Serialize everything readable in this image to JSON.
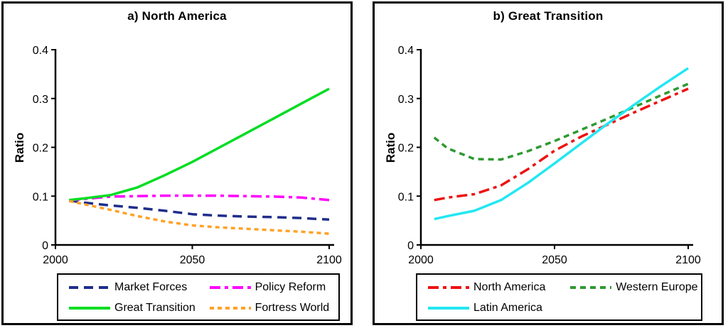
{
  "page": {
    "background": "#ffffff",
    "frame_color": "#000000",
    "axis_color": "#000000",
    "text_color": "#000000"
  },
  "chart_data": [
    {
      "type": "line",
      "title": "a) North America",
      "xlabel": "",
      "ylabel": "Ratio",
      "xlim": [
        2000,
        2100
      ],
      "ylim": [
        0,
        0.4
      ],
      "grid": false,
      "legend_position": "bottom",
      "x_ticks": [
        2000,
        2050,
        2100
      ],
      "x_tick_labels": [
        "2000",
        "2050",
        "2100"
      ],
      "y_ticks": [
        0,
        0.1,
        0.2,
        0.3,
        0.4
      ],
      "y_tick_labels": [
        "0",
        "0.1",
        "0.2",
        "0.3",
        "0.4"
      ],
      "x": [
        2005,
        2010,
        2020,
        2030,
        2040,
        2050,
        2060,
        2070,
        2080,
        2090,
        2100
      ],
      "series": [
        {
          "name": "Market Forces",
          "color": "#1f2d8a",
          "line_style": "long-dash",
          "values": [
            0.091,
            0.087,
            0.081,
            0.076,
            0.07,
            0.063,
            0.06,
            0.058,
            0.057,
            0.055,
            0.052
          ]
        },
        {
          "name": "Policy Reform",
          "color": "#ff00ff",
          "line_style": "dash-dot",
          "values": [
            0.091,
            0.094,
            0.099,
            0.1,
            0.101,
            0.101,
            0.101,
            0.1,
            0.099,
            0.097,
            0.092
          ]
        },
        {
          "name": "Great Transition",
          "color": "#00dd22",
          "line_style": "solid",
          "values": [
            0.092,
            0.095,
            0.102,
            0.118,
            0.143,
            0.17,
            0.2,
            0.23,
            0.26,
            0.29,
            0.32
          ]
        },
        {
          "name": "Fortress World",
          "color": "#ffa226",
          "line_style": "dot",
          "values": [
            0.09,
            0.084,
            0.072,
            0.059,
            0.048,
            0.04,
            0.036,
            0.033,
            0.03,
            0.027,
            0.023
          ]
        }
      ],
      "legend_layout": [
        [
          "Market Forces",
          "Policy Reform"
        ],
        [
          "Great Transition",
          "Fortress World"
        ]
      ]
    },
    {
      "type": "line",
      "title": "b) Great Transition",
      "xlabel": "",
      "ylabel": "Ratio",
      "xlim": [
        2000,
        2100
      ],
      "ylim": [
        0,
        0.4
      ],
      "grid": false,
      "legend_position": "bottom",
      "x_ticks": [
        2000,
        2050,
        2100
      ],
      "x_tick_labels": [
        "2000",
        "2050",
        "2100"
      ],
      "y_ticks": [
        0,
        0.1,
        0.2,
        0.3,
        0.4
      ],
      "y_tick_labels": [
        "0",
        "0.1",
        "0.2",
        "0.3",
        "0.4"
      ],
      "x": [
        2005,
        2010,
        2020,
        2030,
        2040,
        2050,
        2060,
        2070,
        2080,
        2090,
        2100
      ],
      "series": [
        {
          "name": "North America",
          "color": "#ee1111",
          "line_style": "dash-dot",
          "values": [
            0.092,
            0.097,
            0.104,
            0.122,
            0.155,
            0.193,
            0.222,
            0.247,
            0.272,
            0.296,
            0.32
          ]
        },
        {
          "name": "Western Europe",
          "color": "#2f9a32",
          "line_style": "dash",
          "values": [
            0.22,
            0.198,
            0.176,
            0.175,
            0.192,
            0.213,
            0.236,
            0.259,
            0.283,
            0.307,
            0.33
          ]
        },
        {
          "name": "Latin America",
          "color": "#22e7f2",
          "line_style": "solid",
          "values": [
            0.053,
            0.059,
            0.07,
            0.092,
            0.127,
            0.167,
            0.208,
            0.249,
            0.288,
            0.326,
            0.362
          ]
        }
      ],
      "legend_layout": [
        [
          "North America",
          "Western Europe"
        ],
        [
          "Latin America"
        ]
      ]
    }
  ]
}
